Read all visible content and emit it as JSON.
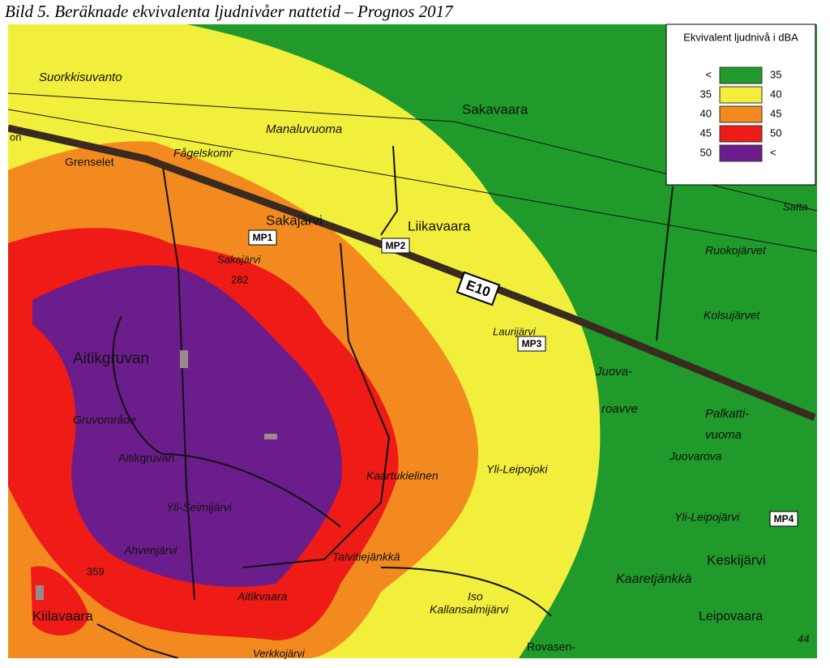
{
  "header": {
    "title": "Bild 5. Beräknade ekvivalenta ljudnivåer nattetid – Prognos 2017"
  },
  "legend": {
    "title": "Ekvivalent ljudnivå i dBA",
    "rows": [
      {
        "from": "<",
        "to": "35",
        "color": "#1f9a2b"
      },
      {
        "from": "35",
        "to": "40",
        "color": "#f2ee3c"
      },
      {
        "from": "40",
        "to": "45",
        "color": "#f28a1f"
      },
      {
        "from": "45",
        "to": "50",
        "color": "#ee1b16"
      },
      {
        "from": "50",
        "to": "<",
        "color": "#6c1d8c"
      }
    ]
  },
  "road": "E10",
  "measure_points": [
    "MP1",
    "MP2",
    "MP3",
    "MP4"
  ],
  "places": [
    "Suorkkisuvanto",
    "Sakavaara",
    "Manaluvuoma",
    "Fågelskomr",
    "Grenselet",
    "Sakajärvi",
    "Liikavaara",
    "Satta",
    "Ruokojärvet",
    "Kolsujärvet",
    "Sakajärvi",
    "282",
    "Laurijärvi",
    "Aitikgruvan",
    "Gruvområde",
    "Aitikgruvan",
    "Juova-",
    "roavve",
    "Palkatti-",
    "vuoma",
    "Juovarova",
    "Yli-Leipojoki",
    "Kaartukielinen",
    "Yli-Leipojärvi",
    "Keskijärvi",
    "Yli-Seimijärvi",
    "Ahvenjärvi",
    "Talvitiejänkkä",
    "359",
    "Kaaretjänkkä",
    "Iso",
    "Kallansalmijärvi",
    "Aitikvaara",
    "Kiilavaara",
    "Leipovaara",
    "Rovasen-",
    "Verkkojärvi",
    "44",
    "on"
  ]
}
